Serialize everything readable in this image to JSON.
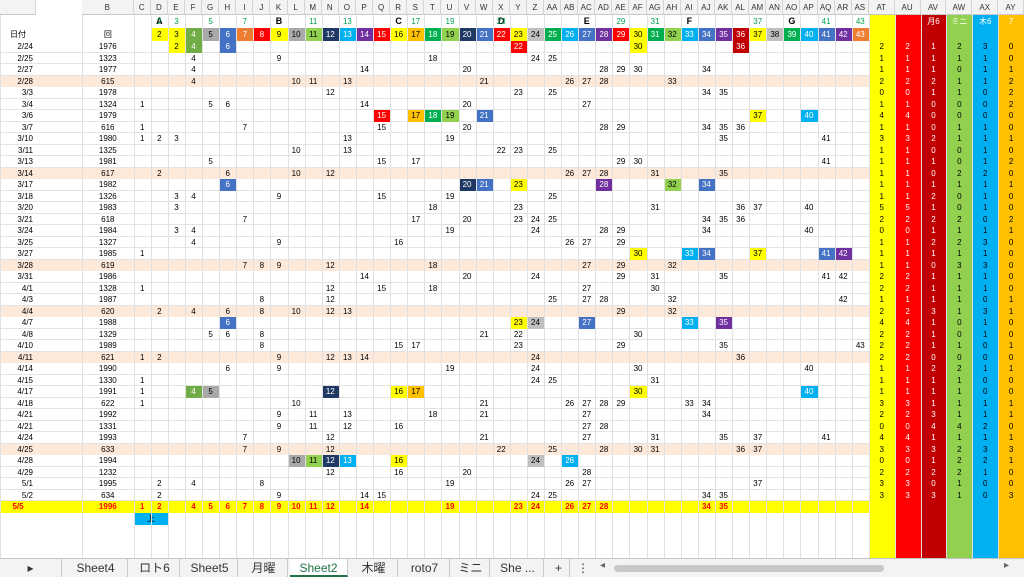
{
  "columns": [
    "A",
    "B",
    "C",
    "D",
    "E",
    "F",
    "G",
    "H",
    "I",
    "J",
    "K",
    "L",
    "M",
    "N",
    "O",
    "P",
    "Q",
    "R",
    "S",
    "T",
    "U",
    "V",
    "W",
    "X",
    "Y",
    "Z",
    "AA",
    "AB",
    "AC",
    "AD",
    "AE",
    "AF",
    "AG",
    "AH",
    "AI",
    "AJ",
    "AK",
    "AL",
    "AM",
    "AN",
    "AO",
    "AP",
    "AQ",
    "AR",
    "AS",
    "AT",
    "AU",
    "AV",
    "AW",
    "AX",
    "AY"
  ],
  "group_letters": {
    "D": "A",
    "K": "B",
    "R": "C",
    "X": "D",
    "AC": "E",
    "AI": "F",
    "AO": "G"
  },
  "top_numbers": {
    "D": "2",
    "E": "3",
    "G": "5",
    "I": "7",
    "M": "11",
    "O": "13",
    "S": "17",
    "U": "19",
    "X": "23",
    "AE": "29",
    "AG": "31",
    "AM": "37",
    "AQ": "41",
    "AS": "43"
  },
  "header_right": {
    "AV": "月6",
    "AW": "ミニ",
    "AX": "木6",
    "AY": "7"
  },
  "date_header": "日付",
  "round_header": "回",
  "palette": [
    {
      "col": "D",
      "bg": "#ffff00",
      "text": "2"
    },
    {
      "col": "E",
      "bg": "#ffff00",
      "text": "3"
    },
    {
      "col": "F",
      "bg": "#70ad47",
      "text": "4"
    },
    {
      "col": "G",
      "bg": "#a9a9a9",
      "text": "5"
    },
    {
      "col": "H",
      "bg": "#4472c4",
      "text": "6"
    },
    {
      "col": "I",
      "bg": "#ed7d31",
      "text": "7"
    },
    {
      "col": "J",
      "bg": "#ff0000",
      "text": "8"
    },
    {
      "col": "K",
      "bg": "#ffff00",
      "text": "9"
    },
    {
      "col": "L",
      "bg": "#a9a9a9",
      "text": "10"
    },
    {
      "col": "M",
      "bg": "#92d050",
      "text": "11"
    },
    {
      "col": "N",
      "bg": "#203864",
      "text": "12"
    },
    {
      "col": "O",
      "bg": "#00b0f0",
      "text": "13"
    },
    {
      "col": "P",
      "bg": "#7030a0",
      "text": "14"
    },
    {
      "col": "Q",
      "bg": "#ff0000",
      "text": "15"
    },
    {
      "col": "R",
      "bg": "#ffff00",
      "text": "16"
    },
    {
      "col": "S",
      "bg": "#ffc000",
      "text": "17"
    },
    {
      "col": "T",
      "bg": "#00b050",
      "text": "18"
    },
    {
      "col": "U",
      "bg": "#92d050",
      "text": "19"
    },
    {
      "col": "V",
      "bg": "#203864",
      "text": "20"
    },
    {
      "col": "W",
      "bg": "#4472c4",
      "text": "21"
    },
    {
      "col": "X",
      "bg": "#ff0000",
      "text": "22"
    },
    {
      "col": "Y",
      "bg": "#ffff00",
      "text": "23"
    },
    {
      "col": "Z",
      "bg": "#bfbfbf",
      "text": "24"
    },
    {
      "col": "AA",
      "bg": "#00b050",
      "text": "25"
    },
    {
      "col": "AB",
      "bg": "#00b0f0",
      "text": "26"
    },
    {
      "col": "AC",
      "bg": "#4472c4",
      "text": "27"
    },
    {
      "col": "AD",
      "bg": "#7030a0",
      "text": "28"
    },
    {
      "col": "AE",
      "bg": "#ff0000",
      "text": "29"
    },
    {
      "col": "AF",
      "bg": "#ffff00",
      "text": "30"
    },
    {
      "col": "AG",
      "bg": "#00b050",
      "text": "31"
    },
    {
      "col": "AH",
      "bg": "#92d050",
      "text": "32"
    },
    {
      "col": "AI",
      "bg": "#00b0f0",
      "text": "33"
    },
    {
      "col": "AJ",
      "bg": "#4472c4",
      "text": "34"
    },
    {
      "col": "AK",
      "bg": "#7030a0",
      "text": "35"
    },
    {
      "col": "AL",
      "bg": "#c00000",
      "text": "36"
    },
    {
      "col": "AM",
      "bg": "#ffff00",
      "text": "37"
    },
    {
      "col": "AN",
      "bg": "#bfbfbf",
      "text": "38"
    },
    {
      "col": "AO",
      "bg": "#00b050",
      "text": "39"
    },
    {
      "col": "AP",
      "bg": "#00b0f0",
      "text": "40"
    },
    {
      "col": "AQ",
      "bg": "#4472c4",
      "text": "41"
    },
    {
      "col": "AR",
      "bg": "#7030a0",
      "text": "42"
    },
    {
      "col": "AS",
      "bg": "#ed7d31",
      "text": "43"
    }
  ],
  "right_colors": {
    "AT": "#ffff00",
    "AU": "#ff0000",
    "AV": "#c00000",
    "AW": "#92d050",
    "AX": "#00b0f0",
    "AY": "#ffc000"
  },
  "rows": [
    {
      "date": "2/24",
      "round": "1976",
      "cells": {
        "E": "2",
        "F": "4",
        "H": "6",
        "Y": "22",
        "AF": "30",
        "AL": "36"
      },
      "stats": [
        "2",
        "1",
        "2",
        "3",
        "0",
        "1"
      ]
    },
    {
      "date": "2/25",
      "round": "1323",
      "cells": {
        "F": "4",
        "K": "9",
        "T": "18",
        "Z": "24",
        "AA": "25"
      },
      "stats": [
        "1",
        "1",
        "1",
        "1",
        "0",
        "1"
      ]
    },
    {
      "date": "2/27",
      "round": "1977",
      "cells": {
        "F": "4",
        "P": "14",
        "V": "20",
        "AD": "28",
        "AE": "29",
        "AF": "30",
        "AJ": "34"
      },
      "stats": [
        "1",
        "1",
        "0",
        "1",
        "1",
        "4"
      ]
    },
    {
      "date": "2/28",
      "round": "615",
      "cells": {
        "F": "4",
        "L": "10",
        "M": "11",
        "O": "13",
        "W": "21",
        "AB": "26",
        "AC": "27",
        "AD": "28",
        "AH": "33"
      },
      "stats": [
        "2",
        "2",
        "1",
        "1",
        "2",
        "1"
      ]
    },
    {
      "date": "3/3",
      "round": "1978",
      "cells": {
        "N": "12",
        "Y": "23",
        "AA": "25",
        "AJ": "34",
        "AK": "35"
      },
      "stats": [
        "0",
        "1",
        "1",
        "0",
        "2",
        "1"
      ]
    },
    {
      "date": "3/4",
      "round": "1324",
      "cells": {
        "C": "1",
        "G": "5",
        "H": "6",
        "P": "14",
        "V": "20",
        "AC": "27"
      },
      "stats": [
        "1",
        "0",
        "0",
        "0",
        "2",
        "1"
      ]
    },
    {
      "date": "3/6",
      "round": "1979",
      "cells": {
        "Q": "15",
        "S": "17",
        "T": "18",
        "U": "19",
        "W": "21",
        "AM": "37",
        "AP": "40"
      },
      "stats": [
        "4",
        "0",
        "0",
        "0",
        "0",
        "1"
      ]
    },
    {
      "date": "3/7",
      "round": "616",
      "cells": {
        "C": "1",
        "I": "7",
        "Q": "15",
        "V": "20",
        "AD": "28",
        "AE": "29",
        "AJ": "34",
        "AK": "35",
        "AL": "36"
      },
      "stats": [
        "1",
        "0",
        "1",
        "1",
        "0",
        "1"
      ]
    },
    {
      "date": "3/10",
      "round": "1980",
      "cells": {
        "C": "1",
        "D": "2",
        "E": "3",
        "O": "13",
        "U": "19",
        "AK": "35",
        "AQ": "41"
      },
      "stats": [
        "3",
        "2",
        "1",
        "1",
        "1",
        "2"
      ]
    },
    {
      "date": "3/11",
      "round": "1325",
      "cells": {
        "L": "10",
        "O": "13",
        "X": "22",
        "Y": "23",
        "AA": "25"
      },
      "stats": [
        "1",
        "0",
        "0",
        "1",
        "0",
        "1"
      ]
    },
    {
      "date": "3/13",
      "round": "1981",
      "cells": {
        "G": "5",
        "Q": "15",
        "S": "17",
        "AE": "29",
        "AF": "30",
        "AQ": "41"
      },
      "stats": [
        "1",
        "1",
        "0",
        "1",
        "2",
        "2"
      ]
    },
    {
      "date": "3/14",
      "round": "617",
      "cells": {
        "D": "2",
        "H": "6",
        "L": "10",
        "N": "12",
        "AB": "26",
        "AC": "27",
        "AD": "28",
        "AG": "31",
        "AK": "35"
      },
      "stats": [
        "1",
        "0",
        "2",
        "2",
        "0",
        "1"
      ]
    },
    {
      "date": "3/17",
      "round": "1982",
      "cells": {
        "H": "6",
        "V": "20",
        "W": "21",
        "Y": "23",
        "AD": "28",
        "AH": "32",
        "AJ": "34"
      },
      "stats": [
        "1",
        "1",
        "1",
        "1",
        "1",
        "1"
      ]
    },
    {
      "date": "3/18",
      "round": "1326",
      "cells": {
        "E": "3",
        "F": "4",
        "K": "9",
        "Q": "15",
        "U": "19",
        "AA": "25"
      },
      "stats": [
        "1",
        "2",
        "0",
        "1",
        "0",
        "1"
      ]
    },
    {
      "date": "3/20",
      "round": "1983",
      "cells": {
        "E": "3",
        "T": "18",
        "Y": "23",
        "AG": "31",
        "AL": "36",
        "AM": "37",
        "AP": "40"
      },
      "stats": [
        "5",
        "1",
        "0",
        "1",
        "0",
        "1"
      ]
    },
    {
      "date": "3/21",
      "round": "618",
      "cells": {
        "I": "7",
        "S": "17",
        "V": "20",
        "Y": "23",
        "Z": "24",
        "AA": "25",
        "AJ": "34",
        "AK": "35",
        "AL": "36"
      },
      "stats": [
        "2",
        "2",
        "2",
        "0",
        "2",
        "0"
      ]
    },
    {
      "date": "3/24",
      "round": "1984",
      "cells": {
        "E": "3",
        "F": "4",
        "U": "19",
        "Z": "24",
        "AD": "28",
        "AE": "29",
        "AJ": "34",
        "AP": "40"
      },
      "stats": [
        "0",
        "1",
        "1",
        "1",
        "1",
        "1"
      ]
    },
    {
      "date": "3/25",
      "round": "1327",
      "cells": {
        "F": "4",
        "K": "9",
        "R": "16",
        "AB": "26",
        "AC": "27",
        "AE": "29"
      },
      "stats": [
        "1",
        "2",
        "2",
        "3",
        "0",
        "0"
      ]
    },
    {
      "date": "3/27",
      "round": "1985",
      "cells": {
        "C": "1",
        "AF": "30",
        "AI": "33",
        "AJ": "34",
        "AM": "37",
        "AQ": "41",
        "AR": "42"
      },
      "stats": [
        "1",
        "1",
        "1",
        "1",
        "0",
        "0"
      ]
    },
    {
      "date": "3/28",
      "round": "619",
      "cells": {
        "I": "7",
        "J": "8",
        "K": "9",
        "N": "12",
        "T": "18",
        "AC": "27",
        "AE": "29",
        "AH": "32"
      },
      "stats": [
        "1",
        "0",
        "3",
        "3",
        "0",
        "1"
      ]
    },
    {
      "date": "3/31",
      "round": "1986",
      "cells": {
        "P": "14",
        "V": "20",
        "Z": "24",
        "AE": "29",
        "AG": "31",
        "AK": "35",
        "AQ": "41",
        "AR": "42"
      },
      "stats": [
        "2",
        "1",
        "1",
        "1",
        "0",
        "2"
      ]
    },
    {
      "date": "4/1",
      "round": "1328",
      "cells": {
        "C": "1",
        "N": "12",
        "Q": "15",
        "T": "18",
        "AC": "27",
        "AG": "30"
      },
      "stats": [
        "2",
        "1",
        "1",
        "1",
        "0",
        "2"
      ]
    },
    {
      "date": "4/3",
      "round": "1987",
      "cells": {
        "J": "8",
        "N": "12",
        "AA": "25",
        "AC": "27",
        "AD": "28",
        "AH": "32",
        "AR": "42"
      },
      "stats": [
        "1",
        "1",
        "1",
        "0",
        "1",
        "2"
      ]
    },
    {
      "date": "4/4",
      "round": "620",
      "cells": {
        "D": "2",
        "F": "4",
        "H": "6",
        "J": "8",
        "L": "10",
        "N": "12",
        "O": "13",
        "AE": "29",
        "AH": "32"
      },
      "stats": [
        "2",
        "3",
        "1",
        "3",
        "1",
        "4"
      ]
    },
    {
      "date": "4/7",
      "round": "1988",
      "cells": {
        "H": "6",
        "Y": "23",
        "Z": "24",
        "AC": "27",
        "AI": "33",
        "AK": "35"
      },
      "stats": [
        "4",
        "1",
        "0",
        "1",
        "0",
        "1"
      ]
    },
    {
      "date": "4/8",
      "round": "1329",
      "cells": {
        "G": "5",
        "H": "6",
        "J": "8",
        "W": "21",
        "Y": "22",
        "AF": "30"
      },
      "stats": [
        "2",
        "1",
        "0",
        "1",
        "0",
        "1"
      ]
    },
    {
      "date": "4/10",
      "round": "1989",
      "cells": {
        "J": "8",
        "R": "15",
        "S": "17",
        "Y": "23",
        "AE": "29",
        "AK": "35",
        "AS": "43"
      },
      "stats": [
        "2",
        "1",
        "1",
        "0",
        "1",
        "2"
      ]
    },
    {
      "date": "4/11",
      "round": "621",
      "cells": {
        "C": "1",
        "D": "2",
        "K": "9",
        "N": "12",
        "O": "13",
        "P": "14",
        "Z": "24",
        "AL": "36"
      },
      "stats": [
        "2",
        "0",
        "0",
        "0",
        "0",
        "0"
      ]
    },
    {
      "date": "4/14",
      "round": "1990",
      "cells": {
        "H": "6",
        "K": "9",
        "U": "19",
        "Z": "24",
        "AF": "30",
        "AP": "40"
      },
      "stats": [
        "1",
        "2",
        "2",
        "1",
        "1",
        "1"
      ]
    },
    {
      "date": "4/15",
      "round": "1330",
      "cells": {
        "C": "1",
        "Z": "24",
        "AA": "25",
        "AG": "31"
      },
      "stats": [
        "1",
        "1",
        "1",
        "0",
        "0",
        "3"
      ]
    },
    {
      "date": "4/17",
      "round": "1991",
      "cells": {
        "C": "1",
        "F": "4",
        "G": "5",
        "N": "12",
        "R": "16",
        "S": "17",
        "AF": "30",
        "AP": "40"
      },
      "stats": [
        "1",
        "1",
        "1",
        "0",
        "0",
        "2"
      ]
    },
    {
      "date": "4/18",
      "round": "622",
      "cells": {
        "C": "1",
        "L": "10",
        "W": "21",
        "AB": "26",
        "AC": "27",
        "AD": "28",
        "AE": "29",
        "AI": "33",
        "AJ": "34"
      },
      "stats": [
        "3",
        "1",
        "1",
        "1",
        "1",
        "1"
      ]
    },
    {
      "date": "4/21",
      "round": "1992",
      "cells": {
        "K": "9",
        "M": "11",
        "O": "13",
        "T": "18",
        "W": "21",
        "AC": "27",
        "AJ": "34"
      },
      "stats": [
        "2",
        "3",
        "1",
        "1",
        "1",
        "1"
      ]
    },
    {
      "date": "4/21",
      "round": "1331",
      "cells": {
        "K": "9",
        "M": "11",
        "O": "12",
        "R": "16",
        "AC": "27",
        "AD": "28"
      },
      "stats": [
        "0",
        "4",
        "4",
        "2",
        "0",
        "2"
      ]
    },
    {
      "date": "4/24",
      "round": "1993",
      "cells": {
        "I": "7",
        "N": "12",
        "W": "21",
        "AC": "27",
        "AG": "31",
        "AK": "35",
        "AM": "37",
        "AQ": "41"
      },
      "stats": [
        "4",
        "1",
        "1",
        "1",
        "1",
        "0"
      ]
    },
    {
      "date": "4/25",
      "round": "633",
      "cells": {
        "I": "7",
        "K": "9",
        "N": "12",
        "X": "22",
        "AA": "25",
        "AD": "28",
        "AF": "30",
        "AG": "31",
        "AL": "36",
        "AM": "37"
      },
      "stats": [
        "3",
        "3",
        "2",
        "3",
        "3",
        "1"
      ]
    },
    {
      "date": "4/28",
      "round": "1994",
      "cells": {
        "L": "10",
        "M": "11",
        "N": "12",
        "O": "13",
        "R": "16",
        "Z": "24",
        "AB": "26"
      },
      "stats": [
        "0",
        "1",
        "2",
        "2",
        "1",
        "2"
      ]
    },
    {
      "date": "4/29",
      "round": "1232",
      "cells": {
        "N": "12",
        "R": "16",
        "V": "20",
        "AC": "28"
      },
      "stats": [
        "2",
        "2",
        "2",
        "1",
        "0",
        "2"
      ]
    },
    {
      "date": "5/1",
      "round": "1995",
      "cells": {
        "D": "2",
        "F": "4",
        "J": "8",
        "U": "19",
        "AB": "26",
        "AC": "27",
        "AM": "37"
      },
      "stats": [
        "3",
        "0",
        "1",
        "0",
        "0",
        "1"
      ]
    },
    {
      "date": "5/2",
      "round": "634",
      "cells": {
        "D": "2",
        "K": "9",
        "P": "14",
        "Q": "15",
        "Z": "24",
        "AA": "25",
        "AJ": "34",
        "AK": "35"
      },
      "stats": [
        "3",
        "3",
        "1",
        "0",
        "3",
        "1"
      ]
    }
  ],
  "total_row": {
    "date": "5/5",
    "round": "1996",
    "cells": {
      "C": "1",
      "D": "2",
      "F": "4",
      "G": "5",
      "H": "6",
      "I": "7",
      "J": "8",
      "K": "9",
      "L": "10",
      "M": "11",
      "N": "12",
      "P": "14",
      "U": "19",
      "Y": "23",
      "Z": "24",
      "AB": "26",
      "AC": "27",
      "AD": "28",
      "AJ": "34",
      "AK": "35"
    }
  },
  "under_label": "上",
  "tabs": [
    "Sheet4",
    "ロト6",
    "Sheet5",
    "月曜",
    "Sheet2",
    "木曜",
    "roto7",
    "ミニ",
    "She ..."
  ],
  "active_tab": "Sheet2",
  "add_sheet": "+",
  "more": "⋮"
}
